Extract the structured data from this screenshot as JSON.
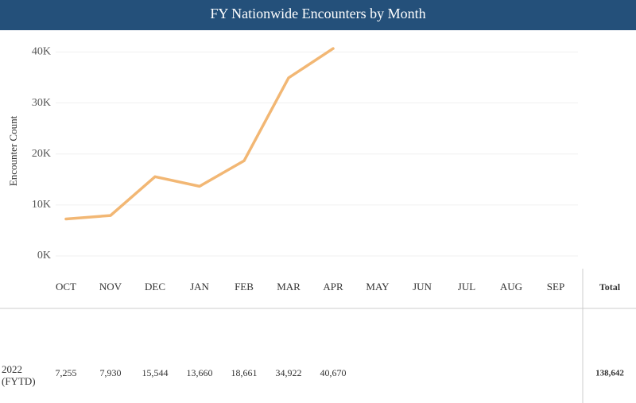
{
  "chart_data": {
    "type": "line",
    "title": "FY Nationwide Encounters by Month",
    "y_label": "Encounter Count",
    "categories": [
      "OCT",
      "NOV",
      "DEC",
      "JAN",
      "FEB",
      "MAR",
      "APR",
      "MAY",
      "JUN",
      "JUL",
      "AUG",
      "SEP"
    ],
    "series": [
      {
        "name": "2022 (FYTD)",
        "color": "#f2b774",
        "values": [
          7255,
          7930,
          15544,
          13660,
          18661,
          34922,
          40670,
          null,
          null,
          null,
          null,
          null
        ],
        "value_labels": [
          "7,255",
          "7,930",
          "15,544",
          "13,660",
          "18,661",
          "34,922",
          "40,670",
          null,
          null,
          null,
          null,
          null
        ]
      }
    ],
    "ylim": [
      0,
      43800
    ],
    "yticks": [
      {
        "value": 0,
        "label": "0K"
      },
      {
        "value": 10000,
        "label": "10K"
      },
      {
        "value": 20000,
        "label": "20K"
      },
      {
        "value": 30000,
        "label": "30K"
      },
      {
        "value": 40000,
        "label": "40K"
      }
    ],
    "grid": true,
    "total_header": "Total",
    "total_label": "138,642"
  }
}
